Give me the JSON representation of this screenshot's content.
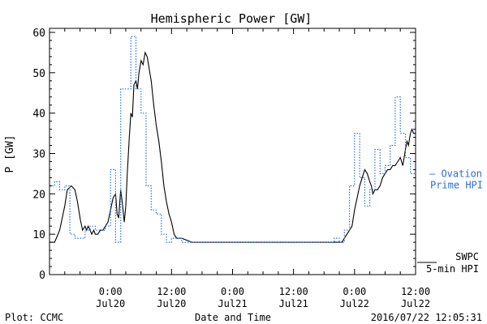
{
  "chart_data": {
    "type": "line",
    "title": "Hemispheric Power [GW]",
    "xlabel": "Date and Time",
    "ylabel": "P [GW]",
    "ylim": [
      0,
      61
    ],
    "xlim_hours": [
      0,
      72
    ],
    "yticks": [
      0,
      10,
      20,
      30,
      40,
      50,
      60
    ],
    "xticks": [
      {
        "h": 12,
        "top": "0:00",
        "bottom": "Jul20"
      },
      {
        "h": 24,
        "top": "12:00",
        "bottom": "Jul20"
      },
      {
        "h": 36,
        "top": "0:00",
        "bottom": "Jul21"
      },
      {
        "h": 48,
        "top": "12:00",
        "bottom": "Jul21"
      },
      {
        "h": 60,
        "top": "0:00",
        "bottom": "Jul22"
      },
      {
        "h": 72,
        "top": "12:00",
        "bottom": "Jul22"
      }
    ],
    "grid": false,
    "series": [
      {
        "name": "SWPC 5-min HPI",
        "color": "#000000",
        "style": "solid",
        "x": [
          0,
          1,
          2,
          3,
          3.5,
          4.3,
          5,
          5.5,
          6,
          6.5,
          7,
          7.3,
          7.6,
          8,
          8.3,
          8.7,
          9,
          9.5,
          10,
          10.5,
          11,
          11.5,
          12,
          12.5,
          13,
          13.3,
          13.6,
          14,
          14.3,
          14.7,
          15,
          15.3,
          15.7,
          16,
          16.3,
          16.6,
          17,
          17.3,
          17.6,
          18,
          18.4,
          18.8,
          19.2,
          19.6,
          20,
          20.5,
          21,
          21.5,
          22,
          22.5,
          23,
          23.5,
          24,
          24.5,
          25,
          26,
          28,
          30,
          35,
          40,
          45,
          50,
          55,
          57,
          57.5,
          58,
          58.5,
          59,
          59.5,
          60,
          60.5,
          61,
          61.5,
          62,
          62.5,
          63,
          63.3,
          63.6,
          64,
          64.5,
          65,
          65.5,
          66,
          66.5,
          67,
          67.5,
          68,
          68.5,
          69,
          69.5,
          70,
          70.3,
          70.6,
          71,
          71.3,
          71.6,
          72
        ],
        "values": [
          8,
          8,
          11,
          17,
          21,
          22,
          21,
          18,
          14,
          11,
          12,
          11,
          12,
          11,
          10,
          11,
          10,
          10,
          11,
          11,
          12,
          13,
          16,
          19,
          20,
          15,
          14,
          21,
          18,
          13,
          17,
          25,
          34,
          40,
          39,
          47,
          48,
          46,
          50,
          53,
          52,
          55,
          54,
          51,
          48,
          42,
          37,
          33,
          28,
          22,
          18,
          15,
          13,
          10,
          9,
          9,
          8,
          8,
          8,
          8,
          8,
          8,
          8,
          8,
          8,
          9,
          10,
          11,
          12,
          16,
          19,
          22,
          24,
          26,
          25,
          23,
          22,
          20,
          21,
          21,
          22,
          24,
          25,
          26,
          26,
          27,
          27,
          28,
          29,
          27,
          31,
          33,
          32,
          35,
          36,
          35,
          35
        ]
      },
      {
        "name": "Ovation Prime HPI",
        "color": "#2b6fd1",
        "style": "dotted-step",
        "x": [
          0,
          1,
          2,
          3,
          4,
          5,
          6,
          7,
          8,
          9,
          10,
          11,
          12,
          13,
          14,
          15,
          16,
          17,
          18,
          19,
          20,
          21,
          22,
          23,
          24,
          25,
          26,
          27,
          30,
          35,
          40,
          45,
          50,
          55,
          56,
          57,
          58,
          59,
          60,
          61,
          62,
          63,
          64,
          65,
          66,
          67,
          68,
          69,
          70,
          71
        ],
        "values": [
          22,
          23,
          21,
          22,
          10,
          9,
          9,
          11,
          12,
          11,
          11,
          12,
          26,
          8,
          46,
          46,
          59,
          46,
          40,
          22,
          16,
          15,
          10,
          8,
          9,
          9,
          8,
          8,
          8,
          8,
          8,
          8,
          8,
          8,
          9,
          8,
          11,
          22,
          35,
          24,
          17,
          21,
          31,
          25,
          27,
          32,
          44,
          35,
          29,
          25
        ]
      }
    ],
    "legend": [
      {
        "text": "— Ovation",
        "text2": "Prime HPI",
        "color": "#2b6fd1",
        "ref_value": 25
      },
      {
        "text": "SWPC",
        "text2": "5-min HPI",
        "color": "#000000",
        "ref_value": 3
      }
    ],
    "footer": {
      "left": "Plot: CCMC",
      "right": "2016/07/22 12:05:31"
    }
  }
}
